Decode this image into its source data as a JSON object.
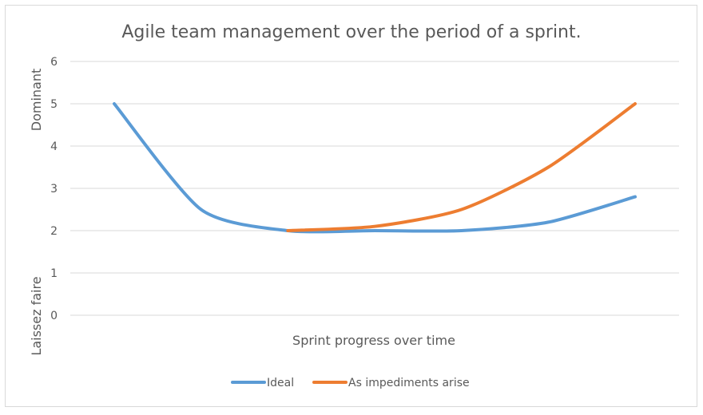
{
  "chart_data": {
    "type": "line",
    "title": "Agile team management over the period of a sprint.",
    "xlabel": "Sprint progress over time",
    "ylabel_top": "Dominant",
    "ylabel_bottom": "Laissez faire",
    "ylim": [
      0,
      6
    ],
    "yticks": [
      "0",
      "1",
      "2",
      "3",
      "4",
      "5",
      "6"
    ],
    "x": [
      1,
      2,
      3,
      4,
      5,
      6,
      7
    ],
    "grid": true,
    "legend_position": "bottom",
    "series": [
      {
        "name": "Ideal",
        "color": "#5b9bd5",
        "values": [
          5,
          2.5,
          2,
          2,
          2,
          2.2,
          2.8
        ]
      },
      {
        "name": "As impediments arise",
        "color": "#ed7d31",
        "values": [
          null,
          null,
          2,
          2.1,
          2.5,
          3.5,
          5
        ]
      }
    ]
  }
}
